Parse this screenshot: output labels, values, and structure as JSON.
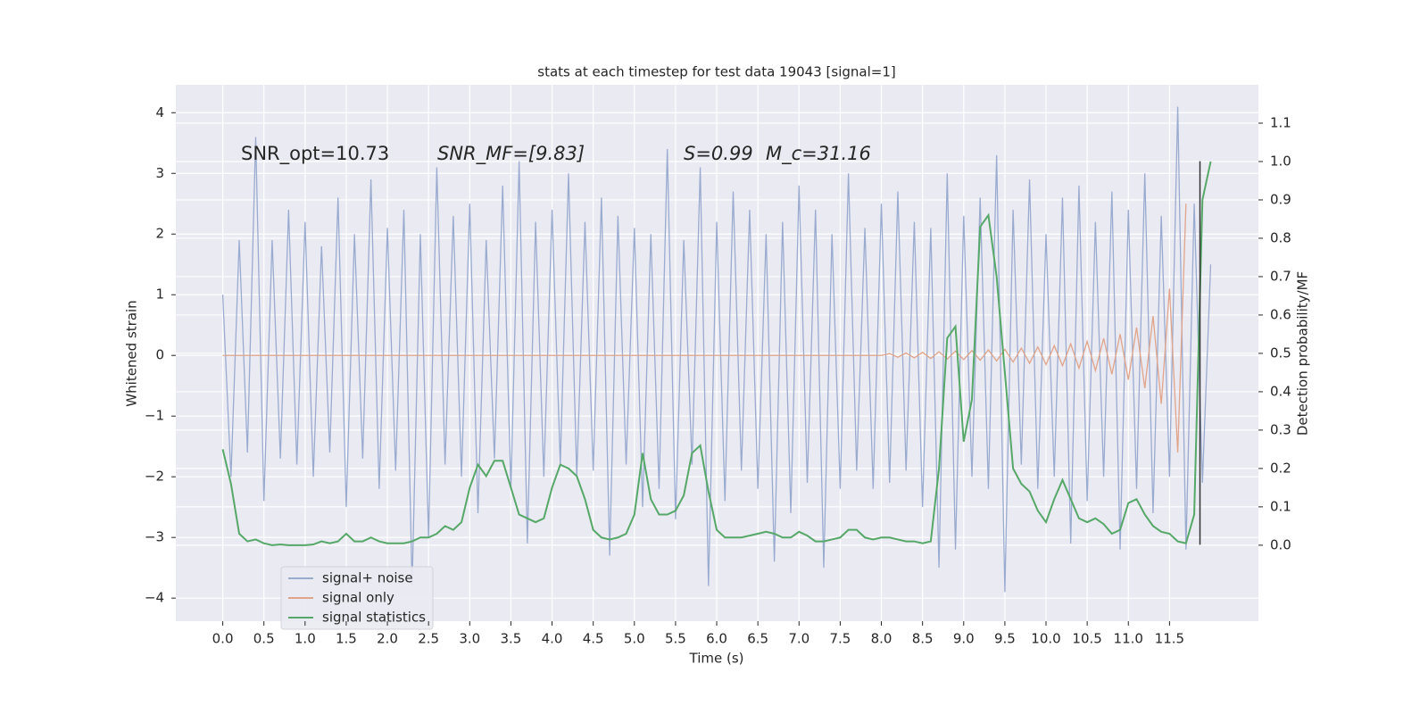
{
  "chart_data": {
    "type": "line",
    "title": "stats at each timestep for test data 19043 [signal=1]",
    "xlabel": "Time (s)",
    "ylabel": "Whitened strain",
    "y2label": "Detection probability/MF",
    "annotations": [
      "SNR_opt=10.73",
      "SNR_MF=[9.83]",
      "S=0.99",
      "M_c=31.16"
    ],
    "grid": true,
    "legend": "lower left",
    "xlim": [
      -0.57,
      12.58
    ],
    "ylim": [
      -4.38,
      4.46
    ],
    "y2lim": [
      -0.198,
      1.2
    ],
    "xticks": [
      {
        "value": 0,
        "label": "0.0"
      },
      0.5,
      {
        "value": 1,
        "label": "1.0"
      },
      1.5,
      {
        "value": 2,
        "label": "2.0"
      },
      2.5,
      {
        "value": 3,
        "label": "3.0"
      },
      3.5,
      {
        "value": 4,
        "label": "4.0"
      },
      4.5,
      {
        "value": 5,
        "label": "5.0"
      },
      5.5,
      {
        "value": 6,
        "label": "6.0"
      },
      6.5,
      {
        "value": 7,
        "label": "7.0"
      },
      7.5,
      {
        "value": 8,
        "label": "8.0"
      },
      8.5,
      {
        "value": 9,
        "label": "9.0"
      },
      9.5,
      {
        "value": 10,
        "label": "10.0"
      },
      10.5,
      {
        "value": 11,
        "label": "11.0"
      },
      11.5
    ],
    "yticks": [
      {
        "value": -4,
        "label": "−4"
      },
      {
        "value": -3,
        "label": "−3"
      },
      {
        "value": -2,
        "label": "−2"
      },
      {
        "value": -1,
        "label": "−1"
      },
      0,
      1,
      2,
      3,
      4
    ],
    "y2ticks": [
      {
        "value": 0,
        "label": "0.0"
      },
      0.1,
      0.2,
      0.3,
      0.4,
      0.5,
      0.6,
      0.7,
      0.8,
      0.9,
      {
        "value": 1,
        "label": "1.0"
      },
      1.1
    ],
    "vline": {
      "x": 11.87,
      "y": [
        -3.12,
        3.2
      ],
      "color": "#333333"
    },
    "x": [
      0.0,
      0.1,
      0.2,
      0.3,
      0.4,
      0.5,
      0.6,
      0.7,
      0.8,
      0.9,
      1.0,
      1.1,
      1.2,
      1.3,
      1.4,
      1.5,
      1.6,
      1.7,
      1.8,
      1.9,
      2.0,
      2.1,
      2.2,
      2.3,
      2.4,
      2.5,
      2.6,
      2.7,
      2.8,
      2.9,
      3.0,
      3.1,
      3.2,
      3.3,
      3.4,
      3.5,
      3.6,
      3.7,
      3.8,
      3.9,
      4.0,
      4.1,
      4.2,
      4.3,
      4.4,
      4.5,
      4.6,
      4.7,
      4.8,
      4.9,
      5.0,
      5.1,
      5.2,
      5.3,
      5.4,
      5.5,
      5.6,
      5.7,
      5.8,
      5.9,
      6.0,
      6.1,
      6.2,
      6.3,
      6.4,
      6.5,
      6.6,
      6.7,
      6.8,
      6.9,
      7.0,
      7.1,
      7.2,
      7.3,
      7.4,
      7.5,
      7.6,
      7.7,
      7.8,
      7.9,
      8.0,
      8.1,
      8.2,
      8.3,
      8.4,
      8.5,
      8.6,
      8.7,
      8.8,
      8.9,
      9.0,
      9.1,
      9.2,
      9.3,
      9.4,
      9.5,
      9.6,
      9.7,
      9.8,
      9.9,
      10.0,
      10.1,
      10.2,
      10.3,
      10.4,
      10.5,
      10.6,
      10.7,
      10.8,
      10.9,
      11.0,
      11.1,
      11.2,
      11.3,
      11.4,
      11.5,
      11.6,
      11.7,
      11.8,
      11.9,
      12.0
    ],
    "series": [
      {
        "name": "signal+ noise",
        "color": "#9aabd0",
        "values": [
          1.0,
          -2.0,
          1.9,
          -1.6,
          3.6,
          -2.4,
          1.9,
          -1.7,
          2.4,
          -1.8,
          2.2,
          -2.0,
          1.8,
          -1.6,
          2.6,
          -2.5,
          2.0,
          -1.7,
          2.9,
          -2.2,
          2.1,
          -1.9,
          2.4,
          -3.8,
          2.0,
          -3.0,
          3.1,
          -1.8,
          2.3,
          -2.0,
          2.5,
          -2.6,
          1.9,
          -1.7,
          2.8,
          -2.2,
          3.2,
          -3.1,
          2.2,
          -2.0,
          2.4,
          -1.8,
          3.0,
          -2.0,
          2.2,
          -1.9,
          2.6,
          -3.3,
          2.3,
          -1.8,
          2.1,
          -2.5,
          2.0,
          -2.2,
          3.4,
          -2.7,
          1.9,
          -1.8,
          3.1,
          -3.8,
          2.2,
          -2.4,
          2.7,
          -1.9,
          2.4,
          -2.2,
          2.0,
          -3.4,
          2.2,
          -2.6,
          2.8,
          -2.1,
          2.4,
          -3.5,
          2.0,
          -2.2,
          3.0,
          -1.9,
          2.1,
          -2.2,
          2.5,
          -2.1,
          2.7,
          -1.9,
          2.2,
          -2.5,
          2.1,
          -3.5,
          3.0,
          -3.2,
          2.3,
          -2.0,
          2.6,
          -2.2,
          3.3,
          -3.9,
          2.4,
          -1.8,
          2.9,
          -2.2,
          2.0,
          -2.0,
          2.6,
          -3.1,
          2.8,
          -2.4,
          2.2,
          -2.0,
          2.7,
          -3.2,
          2.4,
          -2.2,
          3.0,
          -2.6,
          2.3,
          -2.0,
          4.1,
          -3.2,
          2.5,
          -2.1,
          1.5
        ]
      },
      {
        "name": "signal only",
        "color": "#e0a48a",
        "values": [
          0,
          0,
          0,
          0,
          0,
          0,
          0,
          0,
          0,
          0,
          0,
          0,
          0,
          0,
          0,
          0,
          0,
          0,
          0,
          0,
          0,
          0,
          0,
          0,
          0,
          0,
          0,
          0,
          0,
          0,
          0,
          0,
          0,
          0,
          0,
          0,
          0,
          0,
          0,
          0,
          0,
          0,
          0,
          0,
          0,
          0,
          0,
          0,
          0,
          0,
          0,
          0,
          0,
          0,
          0,
          0,
          0,
          0,
          0,
          0,
          0,
          0,
          0,
          0,
          0,
          0,
          0,
          0,
          0,
          0,
          0,
          0,
          0,
          0,
          0,
          0,
          0,
          0,
          0,
          0,
          0,
          0.03,
          -0.03,
          0.04,
          -0.04,
          0.05,
          -0.05,
          0.06,
          -0.06,
          0.07,
          -0.07,
          0.08,
          -0.08,
          0.09,
          -0.09,
          0.1,
          -0.11,
          0.12,
          -0.13,
          0.14,
          -0.15,
          0.16,
          -0.17,
          0.19,
          -0.21,
          0.23,
          -0.25,
          0.28,
          -0.31,
          0.35,
          -0.4,
          0.46,
          -0.54,
          0.65,
          -0.8,
          1.1,
          -1.6,
          2.5,
          null,
          null,
          null
        ]
      },
      {
        "name": "signal statistics",
        "color": "#55a868",
        "axis": "y2",
        "values": [
          0.25,
          0.16,
          0.03,
          0.01,
          0.015,
          0.005,
          0.0,
          0.002,
          0.0,
          0.0,
          0.0,
          0.002,
          0.01,
          0.005,
          0.01,
          0.03,
          0.01,
          0.01,
          0.02,
          0.01,
          0.005,
          0.005,
          0.005,
          0.01,
          0.02,
          0.02,
          0.03,
          0.05,
          0.04,
          0.06,
          0.15,
          0.21,
          0.18,
          0.22,
          0.22,
          0.15,
          0.08,
          0.07,
          0.06,
          0.07,
          0.15,
          0.21,
          0.2,
          0.18,
          0.12,
          0.04,
          0.02,
          0.015,
          0.02,
          0.03,
          0.08,
          0.24,
          0.12,
          0.08,
          0.08,
          0.09,
          0.13,
          0.24,
          0.26,
          0.14,
          0.04,
          0.02,
          0.02,
          0.02,
          0.025,
          0.03,
          0.035,
          0.03,
          0.02,
          0.02,
          0.035,
          0.025,
          0.01,
          0.01,
          0.015,
          0.02,
          0.04,
          0.04,
          0.02,
          0.015,
          0.02,
          0.02,
          0.015,
          0.01,
          0.01,
          0.005,
          0.01,
          0.2,
          0.54,
          0.57,
          0.27,
          0.38,
          0.83,
          0.86,
          0.7,
          0.45,
          0.2,
          0.16,
          0.14,
          0.09,
          0.06,
          0.12,
          0.17,
          0.12,
          0.07,
          0.06,
          0.07,
          0.055,
          0.03,
          0.04,
          0.11,
          0.12,
          0.08,
          0.05,
          0.035,
          0.03,
          0.01,
          0.005,
          0.08,
          0.9,
          1.0
        ]
      }
    ]
  }
}
